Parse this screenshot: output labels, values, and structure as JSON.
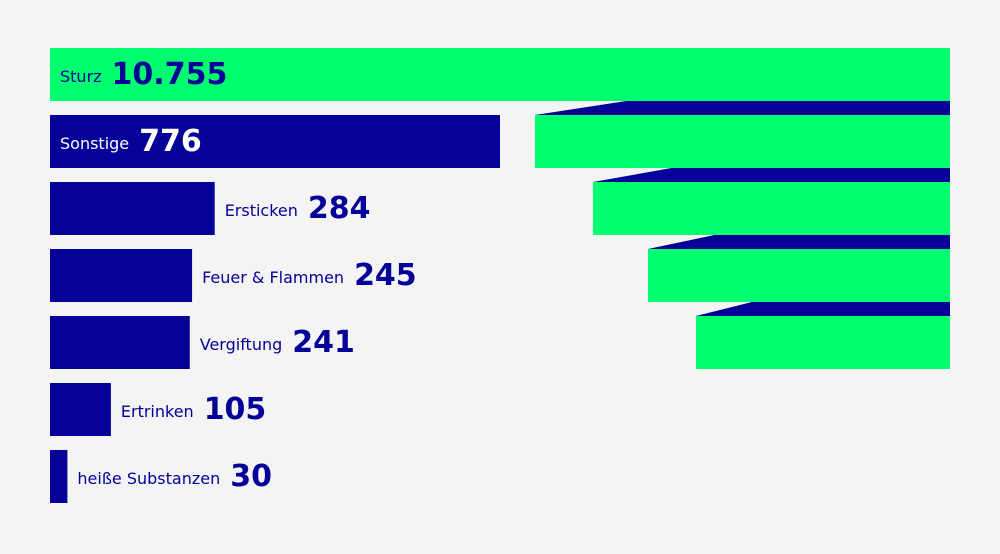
{
  "chart_data": {
    "type": "bar",
    "orientation": "horizontal",
    "categories": [
      "Sturz",
      "Sonstige",
      "Ersticken",
      "Feuer & Flammen",
      "Vergiftung",
      "Ertrinken",
      "heiße Substanzen"
    ],
    "values": [
      10755,
      776,
      284,
      245,
      241,
      105,
      30
    ],
    "value_labels": [
      "10.755",
      "776",
      "284",
      "245",
      "241",
      "105",
      "30"
    ],
    "title": "",
    "xlabel": "",
    "ylabel": "",
    "grid": false,
    "legend": "none",
    "broken_axis": true,
    "colors": {
      "highlight": "#00ff6e",
      "bar": "#040098",
      "background": "#f4f4f4",
      "label_on_bar": "#ffffff"
    }
  }
}
